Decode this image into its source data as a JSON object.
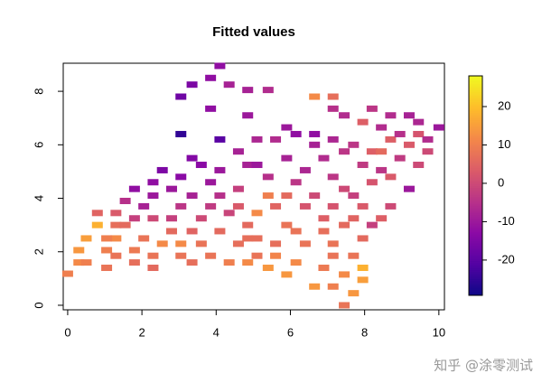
{
  "chart_data": {
    "type": "heat-scatter",
    "title": "Fitted values",
    "xlim": [
      -0.12,
      10.15
    ],
    "ylim": [
      -0.17,
      9.05
    ],
    "xticks": [
      0,
      2,
      4,
      6,
      8,
      10
    ],
    "yticks": [
      0,
      2,
      4,
      6,
      8
    ],
    "zlim": [
      -29.2,
      28
    ],
    "zticks": [
      -20,
      -10,
      0,
      10,
      20
    ],
    "colormap": [
      "#0d0887",
      "#5302a3",
      "#8b0aa5",
      "#b83289",
      "#db5c68",
      "#f48849",
      "#febd2a",
      "#f0f921"
    ],
    "x": [
      0,
      0.3,
      0.5,
      0.3,
      0.5,
      0.8,
      0.8,
      1.05,
      1.3,
      1.3,
      1.3,
      1.05,
      1.05,
      1.55,
      1.55,
      1.3,
      1.8,
      1.8,
      1.8,
      1.8,
      2.05,
      2.05,
      2.3,
      2.3,
      2.3,
      2.3,
      2.3,
      2.55,
      2.55,
      2.8,
      2.8,
      2.8,
      3.05,
      3.05,
      3.05,
      3.05,
      3.05,
      3.05,
      3.35,
      3.35,
      3.35,
      3.35,
      3.35,
      3.6,
      3.6,
      3.6,
      3.85,
      3.85,
      3.85,
      3.85,
      3.85,
      4.1,
      4.1,
      4.1,
      4.1,
      4.1,
      4.35,
      4.35,
      4.35,
      4.6,
      4.6,
      4.6,
      4.6,
      4.85,
      4.85,
      4.85,
      4.85,
      4.85,
      4.85,
      5.1,
      5.1,
      5.1,
      5.1,
      5.1,
      5.4,
      5.4,
      5.4,
      5.4,
      5.6,
      5.6,
      5.6,
      5.6,
      5.9,
      5.9,
      5.9,
      5.9,
      5.9,
      6.15,
      6.15,
      6.15,
      6.15,
      6.4,
      6.4,
      6.4,
      6.65,
      6.65,
      6.65,
      6.65,
      6.65,
      6.9,
      6.9,
      6.9,
      6.9,
      7.15,
      7.15,
      7.15,
      7.15,
      7.15,
      7.15,
      7.15,
      7.15,
      7.45,
      7.45,
      7.45,
      7.45,
      7.45,
      7.45,
      7.7,
      7.7,
      7.7,
      7.7,
      7.7,
      7.95,
      7.95,
      7.95,
      7.95,
      7.95,
      7.95,
      8.2,
      8.2,
      8.2,
      8.2,
      8.45,
      8.45,
      8.45,
      8.45,
      8.7,
      8.7,
      8.7,
      8.7,
      8.95,
      8.95,
      9.2,
      9.2,
      9.2,
      9.45,
      9.45,
      9.45,
      9.7,
      9.7,
      10
    ],
    "y": [
      1.18,
      1.6,
      1.6,
      2.06,
      2.5,
      3.0,
      3.45,
      1.4,
      3.45,
      3.0,
      2.5,
      2.5,
      2.06,
      3.9,
      3.0,
      1.85,
      4.35,
      3.25,
      2.06,
      1.6,
      3.7,
      2.5,
      4.6,
      4.1,
      3.25,
      1.85,
      1.4,
      5.05,
      2.3,
      4.35,
      3.25,
      2.77,
      6.4,
      7.8,
      4.8,
      3.7,
      2.3,
      1.85,
      8.25,
      5.5,
      4.1,
      2.77,
      1.6,
      5.25,
      3.25,
      2.3,
      8.5,
      7.35,
      4.6,
      3.7,
      1.85,
      8.95,
      6.2,
      5.05,
      4.1,
      2.77,
      8.25,
      3.45,
      1.6,
      5.75,
      4.35,
      3.7,
      2.3,
      8.05,
      7.1,
      5.25,
      3.0,
      2.5,
      1.6,
      5.25,
      6.2,
      3.45,
      2.5,
      1.85,
      8.05,
      4.8,
      4.1,
      1.4,
      6.2,
      3.7,
      2.3,
      1.85,
      6.65,
      5.5,
      4.1,
      3.0,
      1.15,
      6.4,
      4.6,
      2.77,
      1.6,
      5.05,
      3.7,
      2.3,
      6.4,
      6.0,
      4.1,
      0.7,
      7.8,
      5.5,
      3.25,
      1.4,
      2.77,
      7.8,
      7.35,
      6.2,
      4.8,
      3.7,
      2.3,
      0.7,
      1.85,
      7.1,
      5.75,
      4.35,
      3.0,
      1.15,
      0,
      6.0,
      4.1,
      3.25,
      1.85,
      0.45,
      6.85,
      5.25,
      3.7,
      2.5,
      1.4,
      0.95,
      7.35,
      5.75,
      4.6,
      3.0,
      5.75,
      5.05,
      3.25,
      6.65,
      7.1,
      6.2,
      4.8,
      3.7,
      5.5,
      6.4,
      7.1,
      6.0,
      4.35,
      6.85,
      5.25,
      6.4,
      6.2,
      5.75,
      6.65
    ],
    "z": [
      10,
      12,
      10,
      14,
      15,
      18,
      5,
      8,
      3,
      7,
      12,
      10,
      10,
      -5,
      6,
      8,
      -12,
      -2,
      9,
      7,
      -8,
      8,
      -12,
      -10,
      0,
      8,
      6,
      -15,
      12,
      -10,
      -2,
      6,
      -25,
      -17,
      -13,
      -4,
      12,
      8,
      -15,
      -14,
      -8,
      5,
      7,
      -13,
      0,
      8,
      -12,
      -12,
      -10,
      -3,
      8,
      -12,
      -20,
      -10,
      -5,
      6,
      -8,
      -1,
      10,
      -8,
      -2,
      3,
      7,
      -8,
      -10,
      -8,
      6,
      7,
      12,
      -10,
      -7,
      12,
      7,
      8,
      -6,
      -5,
      10,
      14,
      -6,
      5,
      7,
      11,
      -10,
      -8,
      6,
      8,
      14,
      -12,
      -4,
      8,
      12,
      -7,
      2,
      8,
      -12,
      -8,
      0,
      14,
      12,
      -6,
      4,
      9,
      7,
      7,
      -5,
      -7,
      -4,
      2,
      8,
      10,
      8,
      -6,
      -4,
      0,
      6,
      12,
      8,
      -4,
      -2,
      5,
      8,
      14,
      4,
      -3,
      3,
      6,
      18,
      15,
      -4,
      4,
      2,
      -2,
      6,
      -4,
      4,
      -6,
      -6,
      4,
      3,
      0,
      -3,
      -5,
      -8,
      3,
      -10,
      -7,
      0,
      2,
      -6,
      0,
      -10
    ],
    "watermark": "知乎 @涂零测试"
  }
}
